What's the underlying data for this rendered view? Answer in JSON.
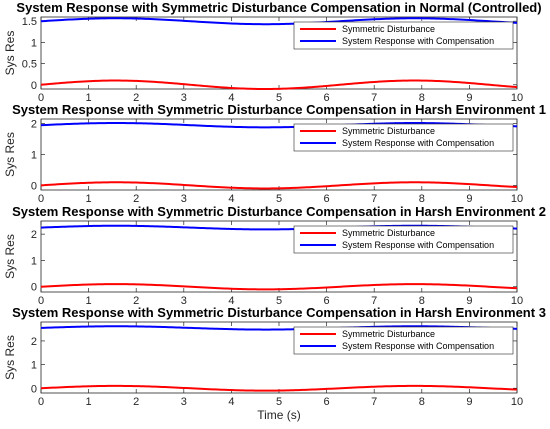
{
  "chart_data": [
    {
      "type": "line",
      "title": "System Response with Symmetric Disturbance Compensation in Normal (Controlled)",
      "ylabel": "Sys Res",
      "xlabel": "",
      "xlim": [
        0,
        10
      ],
      "ylim": [
        -0.1,
        1.6
      ],
      "yticks": [
        0,
        0.5,
        1,
        1.5
      ],
      "ytick_labels": [
        "0",
        "0.5",
        "1",
        "1.5"
      ],
      "xticks": [
        0,
        1,
        2,
        3,
        4,
        5,
        6,
        7,
        8,
        9,
        10
      ],
      "legend_position": "top-right",
      "series": [
        {
          "name": "Symmetric Disturbance",
          "color": "#ff0000",
          "offset": 0,
          "amplitude": 0.1,
          "period": 6.28,
          "phase": 0
        },
        {
          "name": "System Response with Compensation",
          "color": "#0000ff",
          "offset": 1.5,
          "amplitude": 0.07,
          "period": 6.28,
          "phase": 0
        }
      ]
    },
    {
      "type": "line",
      "title": "System Response with Symmetric Disturbance Compensation in Harsh Environment 1",
      "ylabel": "Sys Res",
      "xlabel": "",
      "xlim": [
        0,
        10
      ],
      "ylim": [
        -0.15,
        2.15
      ],
      "yticks": [
        0,
        1,
        2
      ],
      "ytick_labels": [
        "0",
        "1",
        "2"
      ],
      "xticks": [
        0,
        1,
        2,
        3,
        4,
        5,
        6,
        7,
        8,
        9,
        10
      ],
      "legend_position": "top-right",
      "series": [
        {
          "name": "Symmetric Disturbance",
          "color": "#ff0000",
          "offset": 0,
          "amplitude": 0.1,
          "period": 6.28,
          "phase": 0
        },
        {
          "name": "System Response with Compensation",
          "color": "#0000ff",
          "offset": 1.95,
          "amplitude": 0.07,
          "period": 6.28,
          "phase": 0
        }
      ]
    },
    {
      "type": "line",
      "title": "System Response with Symmetric Disturbance Compensation in Harsh Environment 2",
      "ylabel": "Sys Res",
      "xlabel": "",
      "xlim": [
        0,
        10
      ],
      "ylim": [
        -0.2,
        2.5
      ],
      "yticks": [
        0,
        1,
        2
      ],
      "ytick_labels": [
        "0",
        "1",
        "2"
      ],
      "xticks": [
        0,
        1,
        2,
        3,
        4,
        5,
        6,
        7,
        8,
        9,
        10
      ],
      "legend_position": "top-right",
      "series": [
        {
          "name": "Symmetric Disturbance",
          "color": "#ff0000",
          "offset": 0,
          "amplitude": 0.1,
          "period": 6.28,
          "phase": 0
        },
        {
          "name": "System Response with Compensation",
          "color": "#0000ff",
          "offset": 2.25,
          "amplitude": 0.07,
          "period": 6.28,
          "phase": 0
        }
      ]
    },
    {
      "type": "line",
      "title": "System Response with Symmetric Disturbance Compensation in Harsh Environment 3",
      "ylabel": "Sys Res",
      "xlabel": "Time (s)",
      "xlim": [
        0,
        10
      ],
      "ylim": [
        -0.2,
        2.8
      ],
      "yticks": [
        0,
        1,
        2
      ],
      "ytick_labels": [
        "0",
        "1",
        "2"
      ],
      "xticks": [
        0,
        1,
        2,
        3,
        4,
        5,
        6,
        7,
        8,
        9,
        10
      ],
      "legend_position": "top-right",
      "series": [
        {
          "name": "Symmetric Disturbance",
          "color": "#ff0000",
          "offset": 0,
          "amplitude": 0.1,
          "period": 6.28,
          "phase": 0
        },
        {
          "name": "System Response with Compensation",
          "color": "#0000ff",
          "offset": 2.55,
          "amplitude": 0.07,
          "period": 6.28,
          "phase": 0
        }
      ]
    }
  ]
}
